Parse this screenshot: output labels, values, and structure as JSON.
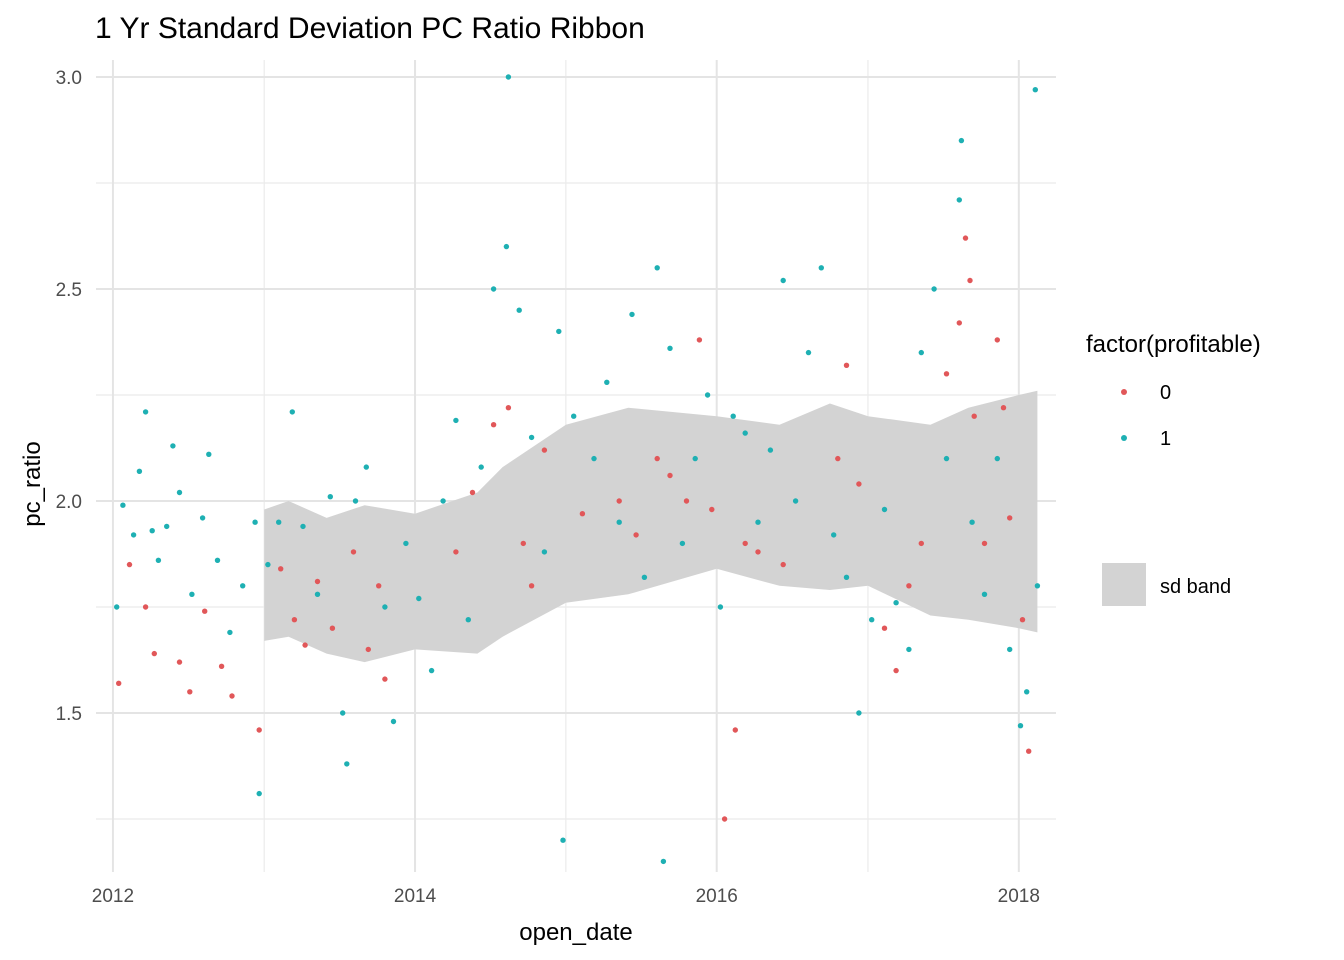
{
  "chart_data": {
    "type": "scatter",
    "title": "1 Yr Standard Deviation PC Ratio Ribbon",
    "xlabel": "open_date",
    "ylabel": "pc_ratio",
    "x_ticks": [
      "2012-01-01",
      "2013-01-01",
      "2014-01-01",
      "2015-01-01",
      "2016-01-01",
      "2017-01-01",
      "2018-01-01"
    ],
    "x_tick_labels": [
      "2012",
      "2014",
      "2016",
      "2018"
    ],
    "y_ticks": [
      1.5,
      2.0,
      2.5,
      3.0
    ],
    "y_tick_labels": [
      "1.5",
      "2.0",
      "2.5",
      "3.0"
    ],
    "xlim": [
      "2011-11-21",
      "2018-04-01"
    ],
    "ylim": [
      1.125,
      3.04
    ],
    "grid": true,
    "legend": {
      "position": "right",
      "title": "factor(profitable)",
      "entries": [
        {
          "label": "0",
          "color": "#e15759"
        },
        {
          "label": "1",
          "color": "#1eb0b3"
        }
      ],
      "band_label": "sd band",
      "band_color": "#d3d3d3"
    },
    "ribbon": [
      {
        "x": "2013-01-01",
        "lower": 1.67,
        "upper": 1.98
      },
      {
        "x": "2013-03-01",
        "lower": 1.68,
        "upper": 2.0
      },
      {
        "x": "2013-06-01",
        "lower": 1.64,
        "upper": 1.96
      },
      {
        "x": "2013-09-01",
        "lower": 1.62,
        "upper": 1.99
      },
      {
        "x": "2014-01-01",
        "lower": 1.65,
        "upper": 1.97
      },
      {
        "x": "2014-06-01",
        "lower": 1.64,
        "upper": 2.02
      },
      {
        "x": "2014-08-01",
        "lower": 1.68,
        "upper": 2.08
      },
      {
        "x": "2015-01-01",
        "lower": 1.76,
        "upper": 2.18
      },
      {
        "x": "2015-06-01",
        "lower": 1.78,
        "upper": 2.22
      },
      {
        "x": "2016-01-01",
        "lower": 1.84,
        "upper": 2.2
      },
      {
        "x": "2016-06-01",
        "lower": 1.8,
        "upper": 2.18
      },
      {
        "x": "2016-10-01",
        "lower": 1.79,
        "upper": 2.23
      },
      {
        "x": "2017-01-01",
        "lower": 1.8,
        "upper": 2.2
      },
      {
        "x": "2017-06-01",
        "lower": 1.73,
        "upper": 2.18
      },
      {
        "x": "2017-09-01",
        "lower": 1.72,
        "upper": 2.22
      },
      {
        "x": "2018-01-01",
        "lower": 1.7,
        "upper": 2.25
      },
      {
        "x": "2018-02-15",
        "lower": 1.69,
        "upper": 2.26
      }
    ],
    "series": [
      {
        "name": "0",
        "color": "#e15759",
        "points": [
          {
            "x": "2012-01-15",
            "y": 1.57
          },
          {
            "x": "2012-02-10",
            "y": 1.85
          },
          {
            "x": "2012-03-20",
            "y": 1.75
          },
          {
            "x": "2012-04-10",
            "y": 1.64
          },
          {
            "x": "2012-06-10",
            "y": 1.62
          },
          {
            "x": "2012-07-05",
            "y": 1.55
          },
          {
            "x": "2012-08-10",
            "y": 1.74
          },
          {
            "x": "2012-09-20",
            "y": 1.61
          },
          {
            "x": "2012-10-15",
            "y": 1.54
          },
          {
            "x": "2012-12-20",
            "y": 1.46
          },
          {
            "x": "2013-02-10",
            "y": 1.84
          },
          {
            "x": "2013-03-15",
            "y": 1.72
          },
          {
            "x": "2013-04-10",
            "y": 1.66
          },
          {
            "x": "2013-05-10",
            "y": 1.81
          },
          {
            "x": "2013-06-15",
            "y": 1.7
          },
          {
            "x": "2013-08-05",
            "y": 1.88
          },
          {
            "x": "2013-09-10",
            "y": 1.65
          },
          {
            "x": "2013-10-05",
            "y": 1.8
          },
          {
            "x": "2013-10-20",
            "y": 1.58
          },
          {
            "x": "2014-04-10",
            "y": 1.88
          },
          {
            "x": "2014-05-20",
            "y": 2.02
          },
          {
            "x": "2014-07-10",
            "y": 2.18
          },
          {
            "x": "2014-08-15",
            "y": 2.22
          },
          {
            "x": "2014-09-20",
            "y": 1.9
          },
          {
            "x": "2014-10-10",
            "y": 1.8
          },
          {
            "x": "2014-11-10",
            "y": 2.12
          },
          {
            "x": "2015-02-10",
            "y": 1.97
          },
          {
            "x": "2015-05-10",
            "y": 2.0
          },
          {
            "x": "2015-06-20",
            "y": 1.92
          },
          {
            "x": "2015-08-10",
            "y": 2.1
          },
          {
            "x": "2015-09-10",
            "y": 2.06
          },
          {
            "x": "2015-10-20",
            "y": 2.0
          },
          {
            "x": "2015-11-20",
            "y": 2.38
          },
          {
            "x": "2015-12-20",
            "y": 1.98
          },
          {
            "x": "2016-01-20",
            "y": 1.25
          },
          {
            "x": "2016-02-15",
            "y": 1.46
          },
          {
            "x": "2016-03-10",
            "y": 1.9
          },
          {
            "x": "2016-04-10",
            "y": 1.88
          },
          {
            "x": "2016-06-10",
            "y": 1.85
          },
          {
            "x": "2016-10-20",
            "y": 2.1
          },
          {
            "x": "2016-11-10",
            "y": 2.32
          },
          {
            "x": "2016-12-10",
            "y": 2.04
          },
          {
            "x": "2017-02-10",
            "y": 1.7
          },
          {
            "x": "2017-03-10",
            "y": 1.6
          },
          {
            "x": "2017-04-10",
            "y": 1.8
          },
          {
            "x": "2017-05-10",
            "y": 1.9
          },
          {
            "x": "2017-07-10",
            "y": 2.3
          },
          {
            "x": "2017-08-10",
            "y": 2.42
          },
          {
            "x": "2017-08-25",
            "y": 2.62
          },
          {
            "x": "2017-09-05",
            "y": 2.52
          },
          {
            "x": "2017-09-15",
            "y": 2.2
          },
          {
            "x": "2017-10-10",
            "y": 1.9
          },
          {
            "x": "2017-11-10",
            "y": 2.38
          },
          {
            "x": "2017-11-25",
            "y": 2.22
          },
          {
            "x": "2017-12-10",
            "y": 1.96
          },
          {
            "x": "2018-01-10",
            "y": 1.72
          },
          {
            "x": "2018-01-25",
            "y": 1.41
          }
        ]
      },
      {
        "name": "1",
        "color": "#1eb0b3",
        "points": [
          {
            "x": "2012-01-10",
            "y": 1.75
          },
          {
            "x": "2012-01-25",
            "y": 1.99
          },
          {
            "x": "2012-02-20",
            "y": 1.92
          },
          {
            "x": "2012-03-05",
            "y": 2.07
          },
          {
            "x": "2012-03-20",
            "y": 2.21
          },
          {
            "x": "2012-04-05",
            "y": 1.93
          },
          {
            "x": "2012-04-20",
            "y": 1.86
          },
          {
            "x": "2012-05-10",
            "y": 1.94
          },
          {
            "x": "2012-05-25",
            "y": 2.13
          },
          {
            "x": "2012-06-10",
            "y": 2.02
          },
          {
            "x": "2012-07-10",
            "y": 1.78
          },
          {
            "x": "2012-08-05",
            "y": 1.96
          },
          {
            "x": "2012-08-20",
            "y": 2.11
          },
          {
            "x": "2012-09-10",
            "y": 1.86
          },
          {
            "x": "2012-10-10",
            "y": 1.69
          },
          {
            "x": "2012-11-10",
            "y": 1.8
          },
          {
            "x": "2012-12-10",
            "y": 1.95
          },
          {
            "x": "2012-12-20",
            "y": 1.31
          },
          {
            "x": "2013-01-10",
            "y": 1.85
          },
          {
            "x": "2013-02-05",
            "y": 1.95
          },
          {
            "x": "2013-03-10",
            "y": 2.21
          },
          {
            "x": "2013-04-05",
            "y": 1.94
          },
          {
            "x": "2013-05-10",
            "y": 1.78
          },
          {
            "x": "2013-06-10",
            "y": 2.01
          },
          {
            "x": "2013-07-10",
            "y": 1.5
          },
          {
            "x": "2013-07-20",
            "y": 1.38
          },
          {
            "x": "2013-08-10",
            "y": 2.0
          },
          {
            "x": "2013-09-05",
            "y": 2.08
          },
          {
            "x": "2013-10-20",
            "y": 1.75
          },
          {
            "x": "2013-11-10",
            "y": 1.48
          },
          {
            "x": "2013-12-10",
            "y": 1.9
          },
          {
            "x": "2014-01-10",
            "y": 1.77
          },
          {
            "x": "2014-02-10",
            "y": 1.6
          },
          {
            "x": "2014-03-10",
            "y": 2.0
          },
          {
            "x": "2014-04-10",
            "y": 2.19
          },
          {
            "x": "2014-05-10",
            "y": 1.72
          },
          {
            "x": "2014-06-10",
            "y": 2.08
          },
          {
            "x": "2014-07-10",
            "y": 2.5
          },
          {
            "x": "2014-08-10",
            "y": 2.6
          },
          {
            "x": "2014-08-15",
            "y": 3.0
          },
          {
            "x": "2014-09-10",
            "y": 2.45
          },
          {
            "x": "2014-10-10",
            "y": 2.15
          },
          {
            "x": "2014-11-10",
            "y": 1.88
          },
          {
            "x": "2014-12-15",
            "y": 2.4
          },
          {
            "x": "2014-12-25",
            "y": 1.2
          },
          {
            "x": "2015-01-20",
            "y": 2.2
          },
          {
            "x": "2015-03-10",
            "y": 2.1
          },
          {
            "x": "2015-04-10",
            "y": 2.28
          },
          {
            "x": "2015-05-10",
            "y": 1.95
          },
          {
            "x": "2015-06-10",
            "y": 2.44
          },
          {
            "x": "2015-07-10",
            "y": 1.82
          },
          {
            "x": "2015-08-10",
            "y": 2.55
          },
          {
            "x": "2015-08-25",
            "y": 1.15
          },
          {
            "x": "2015-09-10",
            "y": 2.36
          },
          {
            "x": "2015-10-10",
            "y": 1.9
          },
          {
            "x": "2015-11-10",
            "y": 2.1
          },
          {
            "x": "2015-12-10",
            "y": 2.25
          },
          {
            "x": "2016-01-10",
            "y": 1.75
          },
          {
            "x": "2016-02-10",
            "y": 2.2
          },
          {
            "x": "2016-03-10",
            "y": 2.16
          },
          {
            "x": "2016-04-10",
            "y": 1.95
          },
          {
            "x": "2016-05-10",
            "y": 2.12
          },
          {
            "x": "2016-06-10",
            "y": 2.52
          },
          {
            "x": "2016-07-10",
            "y": 2.0
          },
          {
            "x": "2016-08-10",
            "y": 2.35
          },
          {
            "x": "2016-09-10",
            "y": 2.55
          },
          {
            "x": "2016-10-10",
            "y": 1.92
          },
          {
            "x": "2016-11-10",
            "y": 1.82
          },
          {
            "x": "2016-12-10",
            "y": 1.5
          },
          {
            "x": "2017-01-10",
            "y": 1.72
          },
          {
            "x": "2017-02-10",
            "y": 1.98
          },
          {
            "x": "2017-03-10",
            "y": 1.76
          },
          {
            "x": "2017-04-10",
            "y": 1.65
          },
          {
            "x": "2017-05-10",
            "y": 2.35
          },
          {
            "x": "2017-06-10",
            "y": 2.5
          },
          {
            "x": "2017-07-10",
            "y": 2.1
          },
          {
            "x": "2017-08-10",
            "y": 2.71
          },
          {
            "x": "2017-08-15",
            "y": 2.85
          },
          {
            "x": "2017-09-10",
            "y": 1.95
          },
          {
            "x": "2017-10-10",
            "y": 1.78
          },
          {
            "x": "2017-11-10",
            "y": 2.1
          },
          {
            "x": "2017-12-10",
            "y": 1.65
          },
          {
            "x": "2018-01-05",
            "y": 1.47
          },
          {
            "x": "2018-01-20",
            "y": 1.55
          },
          {
            "x": "2018-02-10",
            "y": 2.97
          },
          {
            "x": "2018-02-15",
            "y": 1.8
          }
        ]
      }
    ]
  }
}
